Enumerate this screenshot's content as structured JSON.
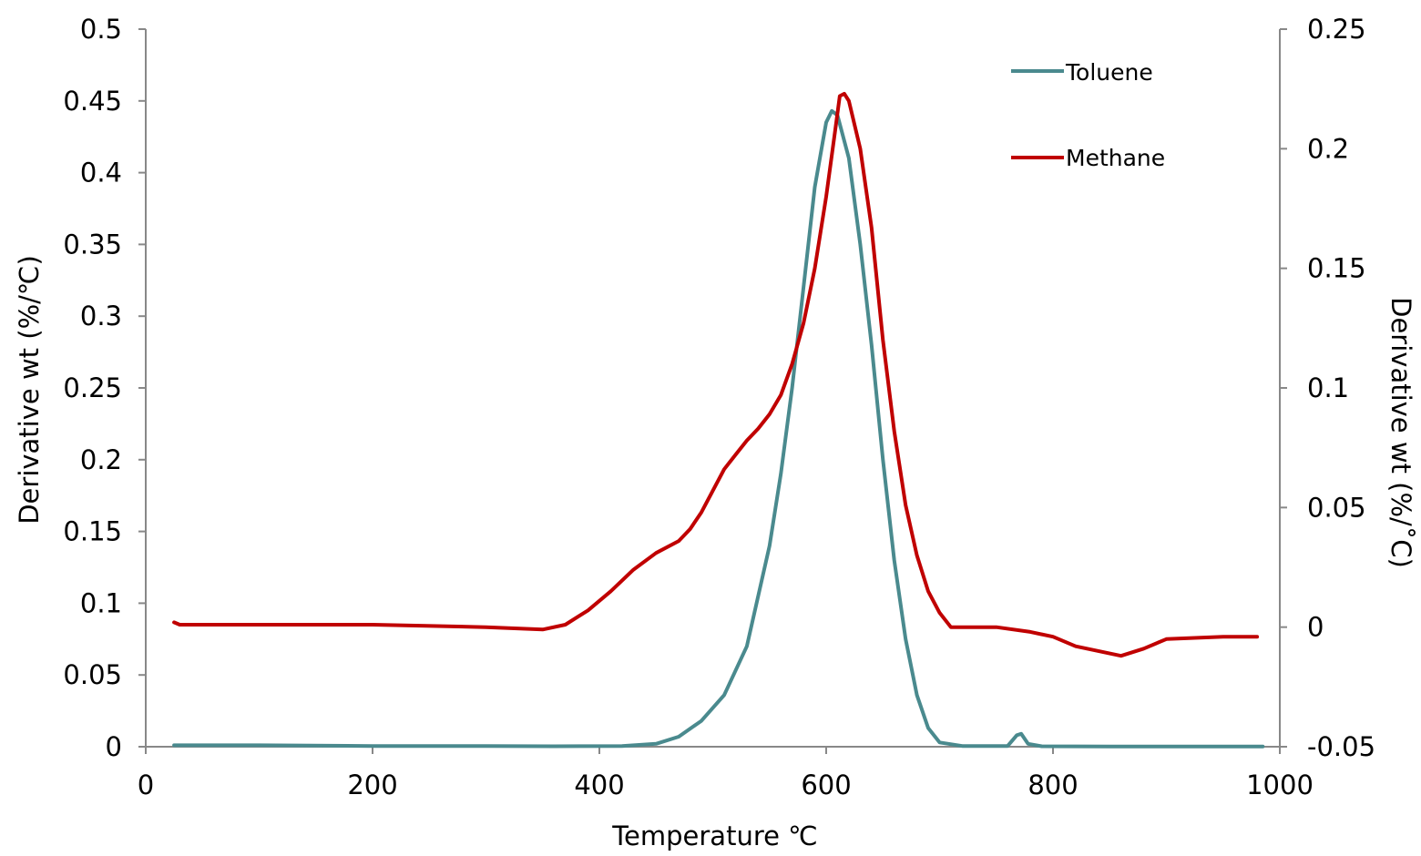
{
  "chart_data": {
    "type": "line",
    "title": "",
    "xlabel": "Temperature ℃",
    "ylabel_left": "Derivative wt (%/℃)",
    "ylabel_right": "Derivative wt (%/˚C)",
    "xlim": [
      0,
      1000
    ],
    "ylim_left": [
      0,
      0.5
    ],
    "ylim_right": [
      -0.05,
      0.25
    ],
    "x_ticks": [
      "0",
      "200",
      "400",
      "600",
      "800",
      "1000"
    ],
    "y_left_ticks": [
      "0",
      "0.05",
      "0.1",
      "0.15",
      "0.2",
      "0.25",
      "0.3",
      "0.35",
      "0.4",
      "0.45",
      "0.5"
    ],
    "y_right_ticks": [
      "-0.05",
      "0",
      "0.05",
      "0.1",
      "0.15",
      "0.2",
      "0.25"
    ],
    "grid": false,
    "legend_position": "top-right",
    "series": [
      {
        "name": "Toluene",
        "axis": "left",
        "color": "#4a8a8e",
        "x": [
          25,
          100,
          200,
          300,
          360,
          420,
          450,
          470,
          490,
          510,
          530,
          550,
          560,
          570,
          580,
          590,
          600,
          605,
          610,
          620,
          630,
          640,
          650,
          660,
          670,
          680,
          690,
          700,
          720,
          760,
          768,
          772,
          778,
          790,
          850,
          900,
          950,
          985
        ],
        "y": [
          0.001,
          0.001,
          0.0005,
          0.0005,
          0.0003,
          0.0005,
          0.002,
          0.007,
          0.018,
          0.036,
          0.07,
          0.14,
          0.19,
          0.25,
          0.32,
          0.39,
          0.435,
          0.443,
          0.44,
          0.41,
          0.35,
          0.28,
          0.2,
          0.13,
          0.075,
          0.036,
          0.013,
          0.003,
          0.0005,
          0.0005,
          0.008,
          0.009,
          0.002,
          0.0003,
          0.0002,
          0.0002,
          0.0002,
          0.0002
        ]
      },
      {
        "name": "Methane",
        "axis": "right",
        "color": "#c00000",
        "x": [
          25,
          30,
          100,
          200,
          300,
          350,
          370,
          390,
          410,
          430,
          450,
          470,
          480,
          490,
          500,
          510,
          520,
          530,
          540,
          550,
          560,
          570,
          580,
          590,
          600,
          608,
          612,
          616,
          620,
          630,
          640,
          650,
          660,
          670,
          680,
          690,
          700,
          710,
          750,
          780,
          800,
          820,
          840,
          860,
          880,
          900,
          950,
          980
        ],
        "y": [
          0.002,
          0.001,
          0.001,
          0.001,
          0.0,
          -0.001,
          0.001,
          0.007,
          0.015,
          0.024,
          0.031,
          0.036,
          0.041,
          0.048,
          0.057,
          0.066,
          0.072,
          0.078,
          0.083,
          0.089,
          0.097,
          0.11,
          0.127,
          0.15,
          0.18,
          0.208,
          0.222,
          0.223,
          0.22,
          0.2,
          0.167,
          0.12,
          0.082,
          0.051,
          0.03,
          0.015,
          0.006,
          0.0,
          0.0,
          -0.002,
          -0.004,
          -0.008,
          -0.01,
          -0.012,
          -0.009,
          -0.005,
          -0.004,
          -0.004
        ]
      }
    ]
  }
}
